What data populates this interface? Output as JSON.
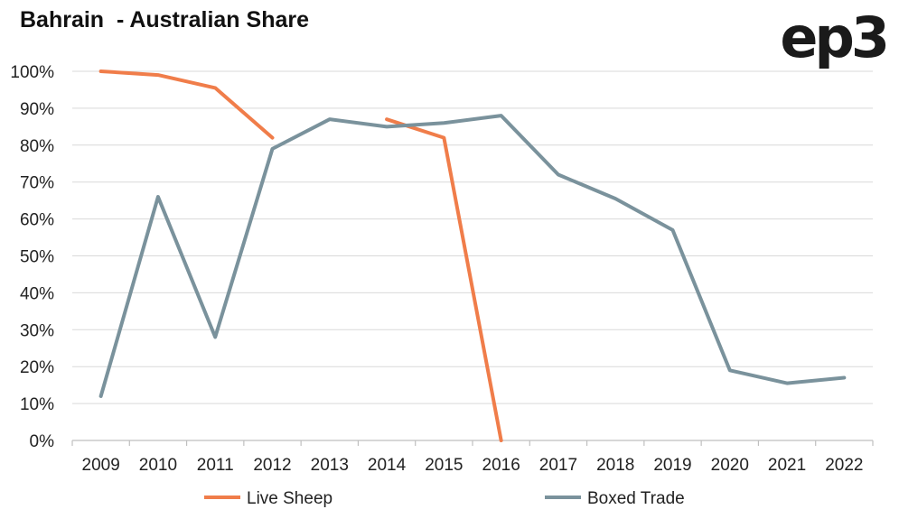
{
  "title": "Bahrain  - Australian Share",
  "logo": "ep3",
  "chart_data": {
    "type": "line",
    "title": "Bahrain  - Australian Share",
    "categories": [
      "2009",
      "2010",
      "2011",
      "2012",
      "2013",
      "2014",
      "2015",
      "2016",
      "2017",
      "2018",
      "2019",
      "2020",
      "2021",
      "2022"
    ],
    "y_ticks": [
      "0%",
      "10%",
      "20%",
      "30%",
      "40%",
      "50%",
      "60%",
      "70%",
      "80%",
      "90%",
      "100%"
    ],
    "ylim": [
      0,
      100
    ],
    "grid": true,
    "legend_position": "bottom",
    "series": [
      {
        "name": "Live Sheep",
        "color": "#F07D4A",
        "values": [
          100,
          99,
          95.5,
          82,
          null,
          87,
          82,
          0,
          null,
          null,
          null,
          null,
          null,
          null
        ]
      },
      {
        "name": "Boxed Trade",
        "color": "#7A929C",
        "values": [
          12,
          66,
          28,
          79,
          87,
          85,
          86,
          88,
          72,
          65.5,
          57,
          19,
          15.5,
          17
        ]
      }
    ]
  }
}
